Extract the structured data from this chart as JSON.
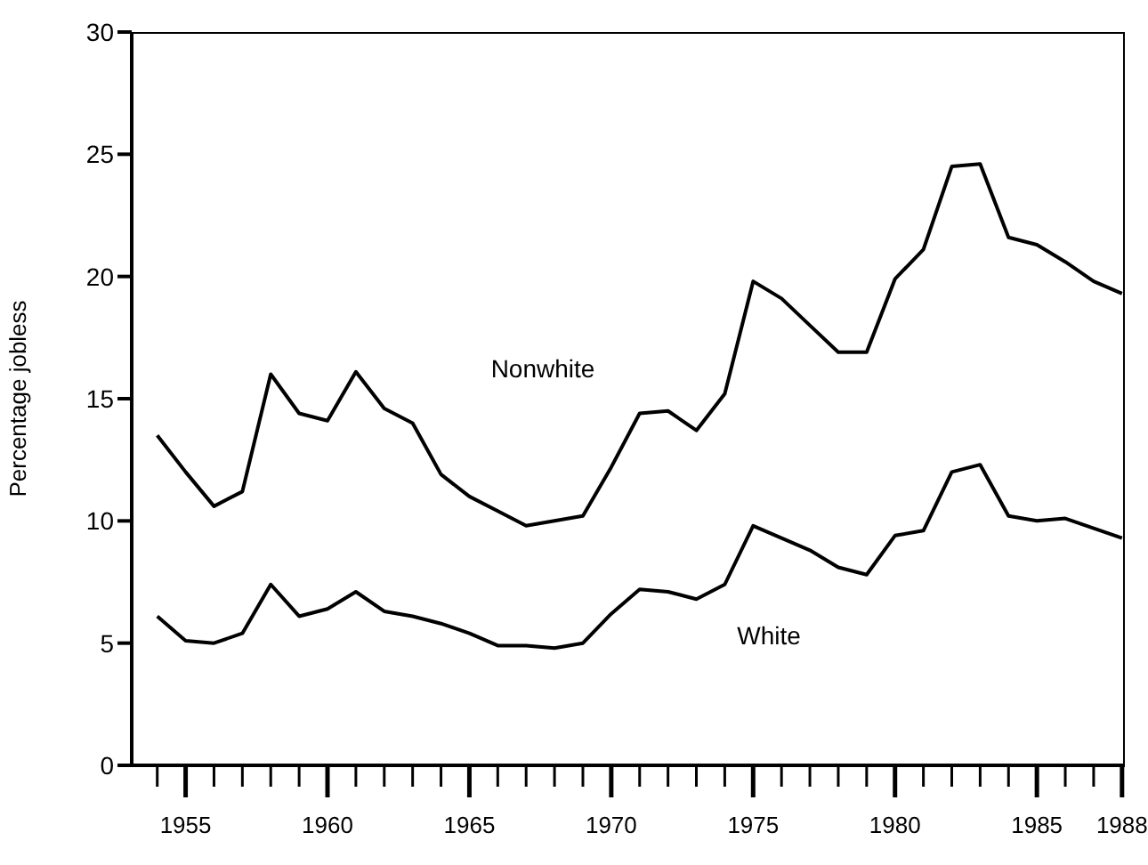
{
  "chart_data": {
    "type": "line",
    "ylabel": "Percentage jobless",
    "x": [
      1954,
      1955,
      1956,
      1957,
      1958,
      1959,
      1960,
      1961,
      1962,
      1963,
      1964,
      1965,
      1966,
      1967,
      1968,
      1969,
      1970,
      1971,
      1972,
      1973,
      1974,
      1975,
      1976,
      1977,
      1978,
      1979,
      1980,
      1981,
      1982,
      1983,
      1984,
      1985,
      1986,
      1987,
      1988
    ],
    "series": [
      {
        "color": "#000000",
        "values": [
          13.5,
          12.0,
          10.6,
          11.2,
          16.0,
          14.4,
          14.1,
          16.1,
          14.6,
          14.0,
          11.9,
          11.0,
          10.4,
          9.8,
          10.0,
          10.2,
          12.2,
          14.4,
          14.5,
          13.7,
          15.2,
          19.8,
          19.1,
          18.0,
          16.9,
          16.9,
          19.9,
          21.1,
          24.5,
          24.6,
          21.6,
          21.3,
          20.6,
          19.8,
          19.3
        ]
      },
      {
        "color": "#000000",
        "values": [
          6.1,
          5.1,
          5.0,
          5.4,
          7.4,
          6.1,
          6.4,
          7.1,
          6.3,
          6.1,
          5.8,
          5.4,
          4.9,
          4.9,
          4.8,
          5.0,
          6.2,
          7.2,
          7.1,
          6.8,
          7.4,
          9.8,
          9.3,
          8.8,
          8.1,
          7.8,
          9.4,
          9.6,
          12.0,
          12.3,
          10.2,
          10.0,
          10.1,
          9.7,
          9.3
        ]
      }
    ],
    "annotations": [
      "Nonwhite",
      "White"
    ],
    "xlim": [
      1953.1,
      1988.1
    ],
    "xticks": [
      {
        "value": 1954,
        "label": null
      },
      1955,
      {
        "value": 1956,
        "label": null
      },
      {
        "value": 1957,
        "label": null
      },
      {
        "value": 1958,
        "label": null
      },
      {
        "value": 1959,
        "label": null
      },
      1960,
      {
        "value": 1961,
        "label": null
      },
      {
        "value": 1962,
        "label": null
      },
      {
        "value": 1963,
        "label": null
      },
      {
        "value": 1964,
        "label": null
      },
      1965,
      {
        "value": 1966,
        "label": null
      },
      {
        "value": 1967,
        "label": null
      },
      {
        "value": 1968,
        "label": null
      },
      {
        "value": 1969,
        "label": null
      },
      1970,
      {
        "value": 1971,
        "label": null
      },
      {
        "value": 1972,
        "label": null
      },
      {
        "value": 1973,
        "label": null
      },
      {
        "value": 1974,
        "label": null
      },
      1975,
      {
        "value": 1976,
        "label": null
      },
      {
        "value": 1977,
        "label": null
      },
      {
        "value": 1978,
        "label": null
      },
      {
        "value": 1979,
        "label": null
      },
      1980,
      {
        "value": 1981,
        "label": null
      },
      {
        "value": 1982,
        "label": null
      },
      {
        "value": 1983,
        "label": null
      },
      {
        "value": 1984,
        "label": null
      },
      1985,
      {
        "value": 1986,
        "label": null
      },
      {
        "value": 1987,
        "label": null
      },
      1988
    ],
    "ylim": [
      0,
      30
    ],
    "yticks": [
      0,
      5,
      10,
      15,
      20,
      25,
      30
    ],
    "grid": false,
    "legend": false,
    "marker": "none",
    "line_style": "solid"
  }
}
